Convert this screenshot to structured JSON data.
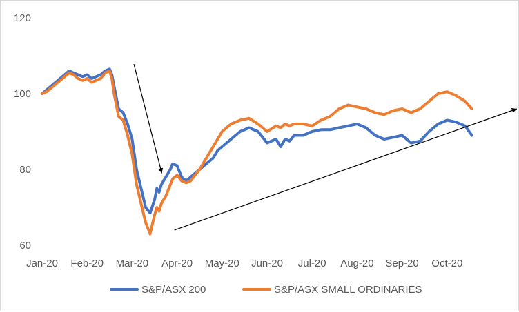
{
  "chart_data": {
    "type": "line",
    "title": "",
    "xlabel": "",
    "ylabel": "",
    "ylim": [
      60,
      120
    ],
    "yticks": [
      "60",
      "80",
      "100",
      "120"
    ],
    "categories": [
      "Jan-20",
      "Feb-20",
      "Mar-20",
      "Apr-20",
      "May-20",
      "Jun-20",
      "Jul-20",
      "Aug-20",
      "Sep-20",
      "Oct-20"
    ],
    "grid": false,
    "legend_position": "bottom",
    "series": [
      {
        "name": "S&P/ASX 200",
        "color": "#4472c4",
        "x": [
          0,
          0.1,
          0.2,
          0.3,
          0.4,
          0.5,
          0.6,
          0.7,
          0.8,
          0.9,
          1.0,
          1.1,
          1.2,
          1.3,
          1.4,
          1.5,
          1.55,
          1.6,
          1.7,
          1.8,
          1.9,
          2.0,
          2.1,
          2.2,
          2.3,
          2.4,
          2.5,
          2.55,
          2.6,
          2.65,
          2.7,
          2.75,
          2.8,
          2.85,
          2.9,
          3.0,
          3.1,
          3.2,
          3.3,
          3.4,
          3.5,
          3.6,
          3.7,
          3.8,
          3.9,
          4.0,
          4.2,
          4.4,
          4.6,
          4.8,
          5.0,
          5.2,
          5.3,
          5.4,
          5.5,
          5.6,
          5.8,
          6.0,
          6.2,
          6.4,
          6.6,
          6.8,
          7.0,
          7.2,
          7.4,
          7.6,
          7.8,
          8.0,
          8.2,
          8.4,
          8.6,
          8.8,
          9.0,
          9.2,
          9.4,
          9.55
        ],
        "values": [
          100,
          101,
          102,
          103,
          104,
          105,
          106,
          105.5,
          105,
          104.5,
          105,
          104,
          104.5,
          105,
          106,
          106.5,
          105,
          102,
          96,
          95,
          92,
          88,
          80,
          75,
          70,
          68.5,
          72,
          75,
          74,
          76,
          77,
          78,
          79,
          80,
          81.5,
          81,
          78,
          77,
          78,
          79,
          80,
          81,
          82,
          83,
          85,
          86,
          88,
          90,
          91,
          90,
          87,
          88,
          86,
          88,
          87.5,
          89,
          89,
          90,
          90.5,
          90.5,
          91,
          91.5,
          92,
          91,
          89,
          88,
          88.5,
          89,
          87,
          87.5,
          90,
          92,
          93,
          92.5,
          91.5,
          89
        ]
      },
      {
        "name": "S&P/ASX SMALL ORDINARIES",
        "color": "#ed7d31",
        "x": [
          0,
          0.1,
          0.2,
          0.3,
          0.4,
          0.5,
          0.6,
          0.7,
          0.8,
          0.9,
          1.0,
          1.1,
          1.2,
          1.3,
          1.4,
          1.5,
          1.55,
          1.6,
          1.7,
          1.8,
          1.9,
          2.0,
          2.1,
          2.2,
          2.3,
          2.4,
          2.5,
          2.55,
          2.6,
          2.65,
          2.7,
          2.75,
          2.8,
          2.85,
          2.9,
          3.0,
          3.1,
          3.2,
          3.3,
          3.4,
          3.5,
          3.6,
          3.7,
          3.8,
          3.9,
          4.0,
          4.2,
          4.4,
          4.6,
          4.8,
          5.0,
          5.2,
          5.3,
          5.4,
          5.5,
          5.6,
          5.8,
          6.0,
          6.2,
          6.4,
          6.6,
          6.8,
          7.0,
          7.2,
          7.4,
          7.6,
          7.8,
          8.0,
          8.2,
          8.4,
          8.6,
          8.8,
          9.0,
          9.2,
          9.4,
          9.55
        ],
        "values": [
          100,
          100.5,
          101.5,
          102.5,
          103.5,
          104.5,
          105.5,
          105,
          104,
          103.5,
          104,
          103,
          103.5,
          104,
          105.5,
          106,
          104,
          100,
          94,
          93,
          89,
          84,
          76,
          71,
          66,
          63,
          68,
          70,
          69,
          71,
          72,
          73,
          74.5,
          76,
          77.5,
          78.5,
          77,
          76.5,
          77,
          78.5,
          80,
          82,
          84,
          86,
          88,
          90,
          92,
          93,
          93.5,
          92,
          90,
          91.5,
          91,
          92,
          91.5,
          92,
          92,
          91.5,
          93,
          94,
          96,
          97,
          96.5,
          96,
          95,
          94.5,
          95.5,
          96,
          95,
          96,
          98,
          100,
          100.5,
          99.5,
          98,
          96
        ]
      }
    ],
    "annotations": [
      {
        "type": "arrow",
        "from": [
          2.04,
          107.8
        ],
        "to": [
          2.66,
          79
        ]
      },
      {
        "type": "arrow",
        "from": [
          2.94,
          64
        ],
        "to": [
          10.55,
          96
        ]
      }
    ]
  },
  "legend": {
    "items": [
      "S&P/ASX 200",
      "S&P/ASX SMALL ORDINARIES"
    ]
  }
}
